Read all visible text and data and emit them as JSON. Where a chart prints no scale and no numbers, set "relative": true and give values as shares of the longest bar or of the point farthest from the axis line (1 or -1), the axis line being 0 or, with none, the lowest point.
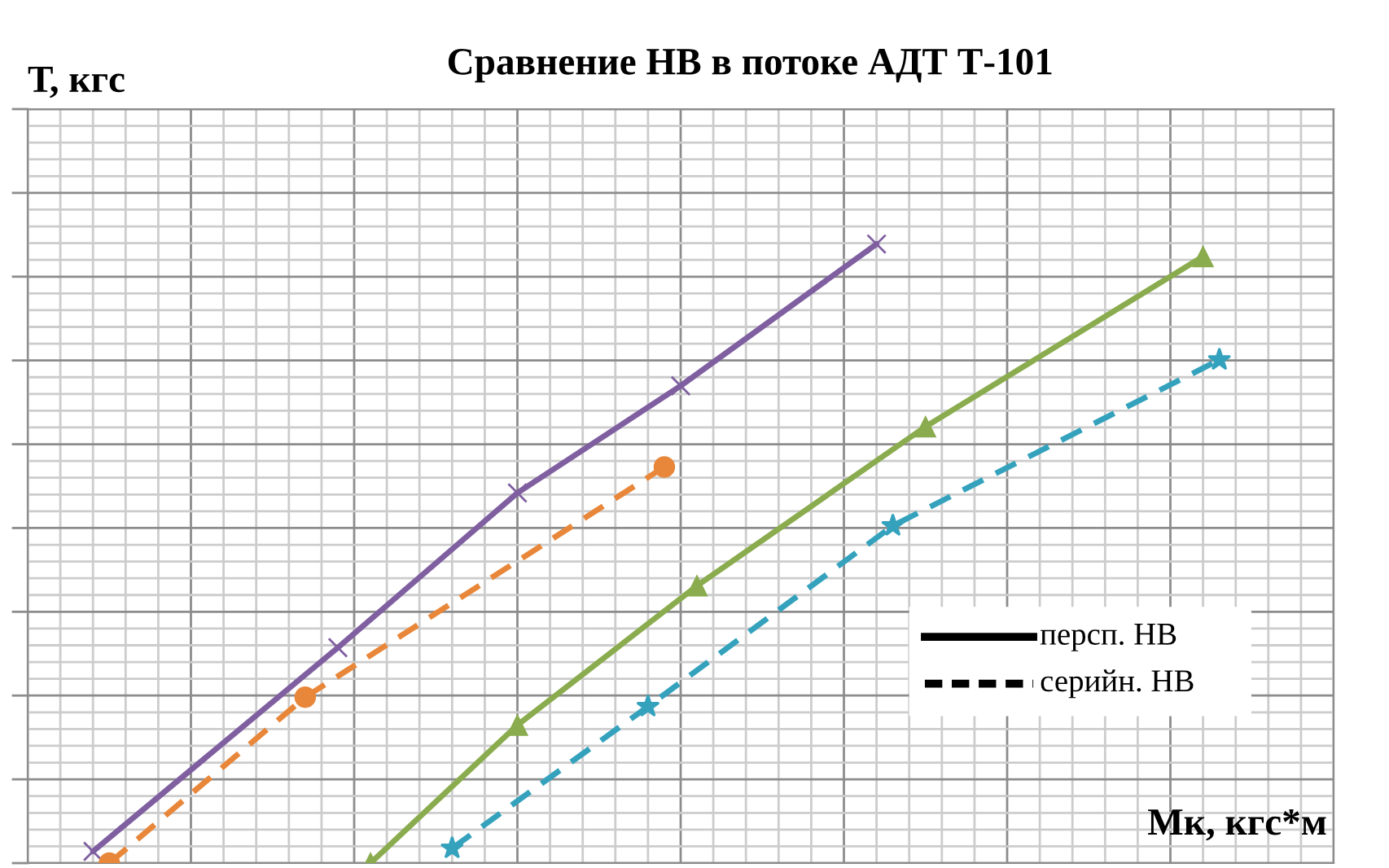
{
  "chart_data": {
    "type": "line",
    "title": "Сравнение НВ в потоке АДТ Т-101",
    "xlabel": "Мк, кгс*м",
    "ylabel": "Т, кгс",
    "relative": true,
    "grid": true,
    "annotations": [
      "персп. НВ",
      "серийн. НВ"
    ],
    "categories": [
      null,
      null,
      null,
      null,
      null,
      null,
      null,
      null,
      null,
      null,
      null,
      null,
      null,
      null,
      null,
      null,
      null,
      null,
      null,
      null,
      null,
      null,
      null,
      null,
      null,
      null,
      null,
      null,
      null,
      null,
      null,
      null,
      null,
      null,
      null,
      null,
      null,
      null,
      null,
      null,
      null,
      null,
      null,
      null,
      null,
      null,
      null,
      null,
      null,
      null,
      null,
      null,
      null,
      null,
      null,
      null,
      null,
      null,
      null,
      null,
      null,
      null,
      null,
      null,
      null,
      null,
      null,
      null,
      null,
      null,
      null,
      null,
      null,
      null,
      null,
      null,
      null,
      null,
      null,
      null,
      null
    ],
    "series": [
      {
        "color": "#7f5fa0",
        "marker": "cross",
        "line_style": "solid",
        "values": [
          null,
          null,
          null,
          null,
          0.019,
          null,
          null,
          null,
          null,
          null,
          null,
          null,
          null,
          null,
          null,
          null,
          null,
          null,
          null,
          0.348,
          null,
          null,
          null,
          null,
          null,
          null,
          null,
          null,
          null,
          null,
          0.598,
          null,
          null,
          null,
          null,
          null,
          null,
          null,
          null,
          null,
          0.771,
          null,
          null,
          null,
          null,
          null,
          null,
          null,
          null,
          null,
          null,
          null,
          1.0,
          null,
          null,
          null,
          null,
          null,
          null,
          null,
          null,
          null,
          null,
          null,
          null,
          null,
          null,
          null,
          null,
          null,
          null,
          null,
          null,
          null,
          null,
          null,
          null,
          null,
          null,
          null,
          null
        ]
      },
      {
        "color": "#e8873a",
        "marker": "circle",
        "line_style": "dashed",
        "values": [
          null,
          null,
          null,
          null,
          null,
          0.0,
          null,
          null,
          null,
          null,
          null,
          null,
          null,
          null,
          null,
          null,
          null,
          0.268,
          null,
          null,
          null,
          null,
          null,
          null,
          null,
          null,
          null,
          null,
          null,
          null,
          null,
          null,
          null,
          null,
          null,
          null,
          null,
          null,
          null,
          0.64,
          null,
          null,
          null,
          null,
          null,
          null,
          null,
          null,
          null,
          null,
          null,
          null,
          null,
          null,
          null,
          null,
          null,
          null,
          null,
          null,
          null,
          null,
          null,
          null,
          null,
          null,
          null,
          null,
          null,
          null,
          null,
          null,
          null,
          null,
          null,
          null,
          null,
          null,
          null,
          null,
          null
        ]
      },
      {
        "color": "#8aac4e",
        "marker": "triangle",
        "line_style": "solid",
        "values": [
          null,
          null,
          null,
          null,
          null,
          null,
          null,
          null,
          null,
          null,
          null,
          null,
          null,
          null,
          null,
          null,
          null,
          null,
          null,
          null,
          null,
          0.0,
          null,
          null,
          null,
          null,
          null,
          null,
          null,
          null,
          0.223,
          null,
          null,
          null,
          null,
          null,
          null,
          null,
          null,
          null,
          null,
          0.448,
          null,
          null,
          null,
          null,
          null,
          null,
          null,
          null,
          null,
          null,
          null,
          null,
          null,
          0.705,
          null,
          null,
          null,
          null,
          null,
          null,
          null,
          null,
          null,
          null,
          null,
          null,
          null,
          null,
          null,
          null,
          0.98,
          null,
          null,
          null,
          null,
          null,
          null,
          null,
          null
        ]
      },
      {
        "color": "#35a2bd",
        "marker": "star",
        "line_style": "dashed",
        "values": [
          null,
          null,
          null,
          null,
          null,
          null,
          null,
          null,
          null,
          null,
          null,
          null,
          null,
          null,
          null,
          null,
          null,
          null,
          null,
          null,
          null,
          null,
          null,
          null,
          null,
          null,
          0.024,
          null,
          null,
          null,
          null,
          null,
          null,
          null,
          null,
          null,
          null,
          null,
          0.253,
          null,
          null,
          null,
          null,
          null,
          null,
          null,
          null,
          null,
          null,
          null,
          null,
          null,
          null,
          0.545,
          null,
          null,
          null,
          null,
          null,
          null,
          null,
          null,
          null,
          null,
          null,
          null,
          null,
          null,
          null,
          null,
          null,
          null,
          null,
          0.813,
          null,
          null,
          null,
          null,
          null,
          null,
          null
        ]
      }
    ]
  }
}
